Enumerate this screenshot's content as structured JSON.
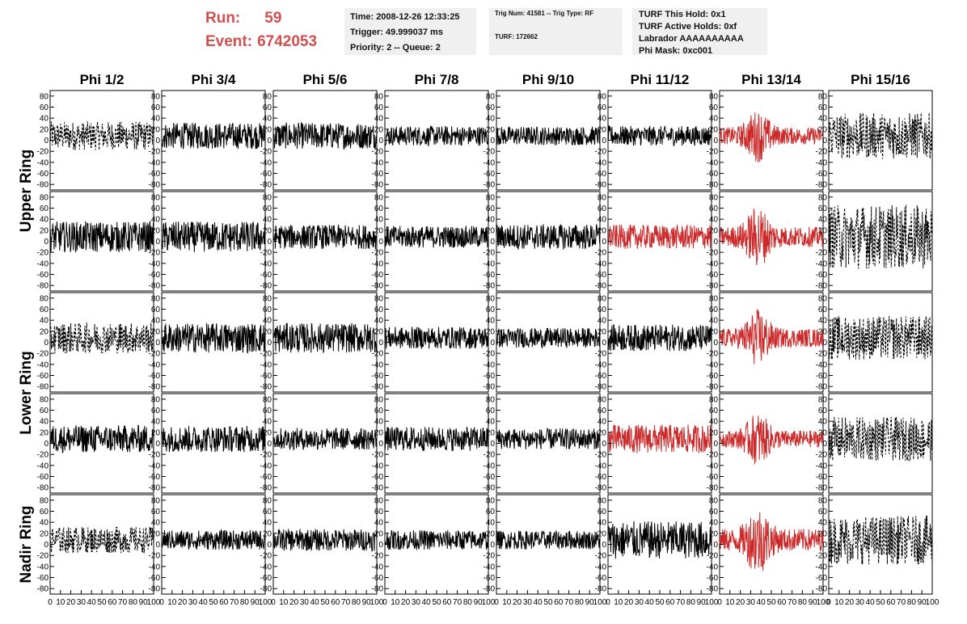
{
  "header": {
    "run_label": "Run:",
    "run_value": "59",
    "event_label": "Event:",
    "event_value": "6742053",
    "time_lines": [
      "Time: 2008-12-26 12:33:25",
      "Trigger: 49.999037 ms",
      "Priority: 2 -- Queue: 2"
    ],
    "trig_line": "Trig Num: 41581 -- Trig Type: RF",
    "turf_line": "TURF: 172662",
    "turf_lines": [
      "TURF This Hold: 0x1",
      "TURF Active Holds: 0xf",
      "Labrador AAAAAAAAAA",
      "Phi Mask: 0xc001"
    ]
  },
  "colors": {
    "run_text": "#d05050",
    "normal_trace": "#000000",
    "highlight_trace": "#cc2a2a",
    "info_box_bg": "#f0f0f0"
  },
  "chart_data": {
    "type": "line",
    "columns": [
      "Phi 1/2",
      "Phi 3/4",
      "Phi 5/6",
      "Phi 7/8",
      "Phi 9/10",
      "Phi 11/12",
      "Phi 13/14",
      "Phi 15/16"
    ],
    "ring_labels": [
      "Upper Ring",
      "Lower Ring",
      "Nadir Ring"
    ],
    "ring_rows": [
      [
        0,
        1
      ],
      [
        2,
        3
      ],
      [
        4
      ]
    ],
    "ylim": [
      -90,
      90
    ],
    "yticks": [
      -80,
      -60,
      -40,
      -20,
      0,
      20,
      40,
      60,
      80
    ],
    "xlim": [
      0,
      100
    ],
    "xticks": [
      0,
      10,
      20,
      30,
      40,
      50,
      60,
      70,
      80,
      90,
      100
    ],
    "panels": [
      [
        {
          "style": "dashed",
          "color": "black",
          "amp": 26
        },
        {
          "style": "solid",
          "color": "black",
          "amp": 24
        },
        {
          "style": "solid",
          "color": "black",
          "amp": 24
        },
        {
          "style": "solid",
          "color": "black",
          "amp": 18
        },
        {
          "style": "solid",
          "color": "black",
          "amp": 17
        },
        {
          "style": "solid",
          "color": "black",
          "amp": 18
        },
        {
          "style": "solid",
          "color": "red",
          "amp": 44
        },
        {
          "style": "dashed",
          "color": "black",
          "amp": 42
        }
      ],
      [
        {
          "style": "solid",
          "color": "black",
          "amp": 28
        },
        {
          "style": "solid",
          "color": "black",
          "amp": 28
        },
        {
          "style": "solid",
          "color": "black",
          "amp": 22
        },
        {
          "style": "solid",
          "color": "black",
          "amp": 20
        },
        {
          "style": "solid",
          "color": "black",
          "amp": 23
        },
        {
          "style": "solid",
          "color": "red",
          "amp": 22
        },
        {
          "style": "solid",
          "color": "red",
          "amp": 52
        },
        {
          "style": "dashed",
          "color": "black",
          "amp": 58
        }
      ],
      [
        {
          "style": "dashed",
          "color": "black",
          "amp": 28
        },
        {
          "style": "solid",
          "color": "black",
          "amp": 27
        },
        {
          "style": "solid",
          "color": "black",
          "amp": 27
        },
        {
          "style": "solid",
          "color": "black",
          "amp": 20
        },
        {
          "style": "solid",
          "color": "black",
          "amp": 18
        },
        {
          "style": "solid",
          "color": "black",
          "amp": 24
        },
        {
          "style": "solid",
          "color": "red",
          "amp": 48
        },
        {
          "style": "dashed",
          "color": "black",
          "amp": 40
        }
      ],
      [
        {
          "style": "solid",
          "color": "black",
          "amp": 25
        },
        {
          "style": "solid",
          "color": "black",
          "amp": 24
        },
        {
          "style": "solid",
          "color": "black",
          "amp": 20
        },
        {
          "style": "solid",
          "color": "black",
          "amp": 22
        },
        {
          "style": "solid",
          "color": "black",
          "amp": 19
        },
        {
          "style": "solid",
          "color": "red",
          "amp": 26
        },
        {
          "style": "solid",
          "color": "red",
          "amp": 44
        },
        {
          "style": "dashed",
          "color": "black",
          "amp": 40
        }
      ],
      [
        {
          "style": "dashed",
          "color": "black",
          "amp": 24
        },
        {
          "style": "solid",
          "color": "black",
          "amp": 18
        },
        {
          "style": "solid",
          "color": "black",
          "amp": 20
        },
        {
          "style": "solid",
          "color": "black",
          "amp": 18
        },
        {
          "style": "solid",
          "color": "black",
          "amp": 17
        },
        {
          "style": "solid",
          "color": "black",
          "amp": 34
        },
        {
          "style": "solid",
          "color": "red",
          "amp": 58
        },
        {
          "style": "dashed",
          "color": "black",
          "amp": 44
        }
      ]
    ]
  }
}
